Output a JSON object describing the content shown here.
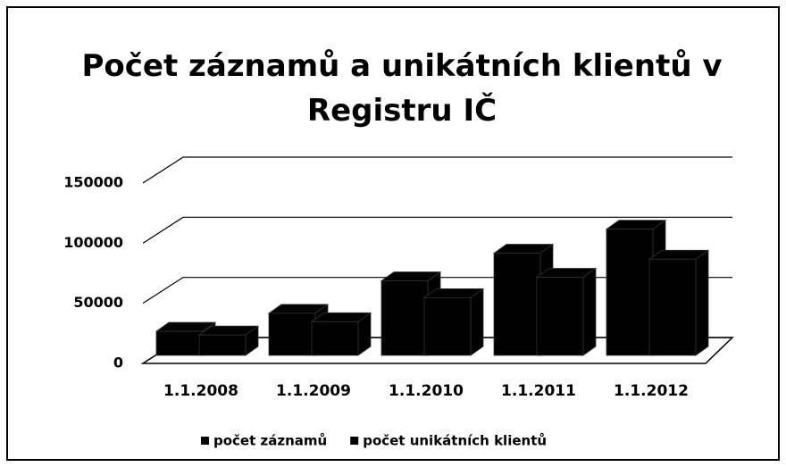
{
  "chart_data": {
    "type": "bar3d",
    "title": "Počet záznamů a unikátních klientů v Registru IČ",
    "categories": [
      "1.1.2008",
      "1.1.2009",
      "1.1.2010",
      "1.1.2011",
      "1.1.2012"
    ],
    "series": [
      {
        "name": "počet záznamů",
        "color": "#000000",
        "values": [
          20000,
          35000,
          62000,
          85000,
          105000
        ]
      },
      {
        "name": "počet unikátních klientů",
        "color": "#000000",
        "values": [
          17000,
          28000,
          48000,
          65000,
          80000
        ]
      }
    ],
    "ylim": [
      0,
      150000
    ],
    "yticks": [
      0,
      50000,
      100000,
      150000
    ],
    "grid": true,
    "legend": "bottom"
  }
}
